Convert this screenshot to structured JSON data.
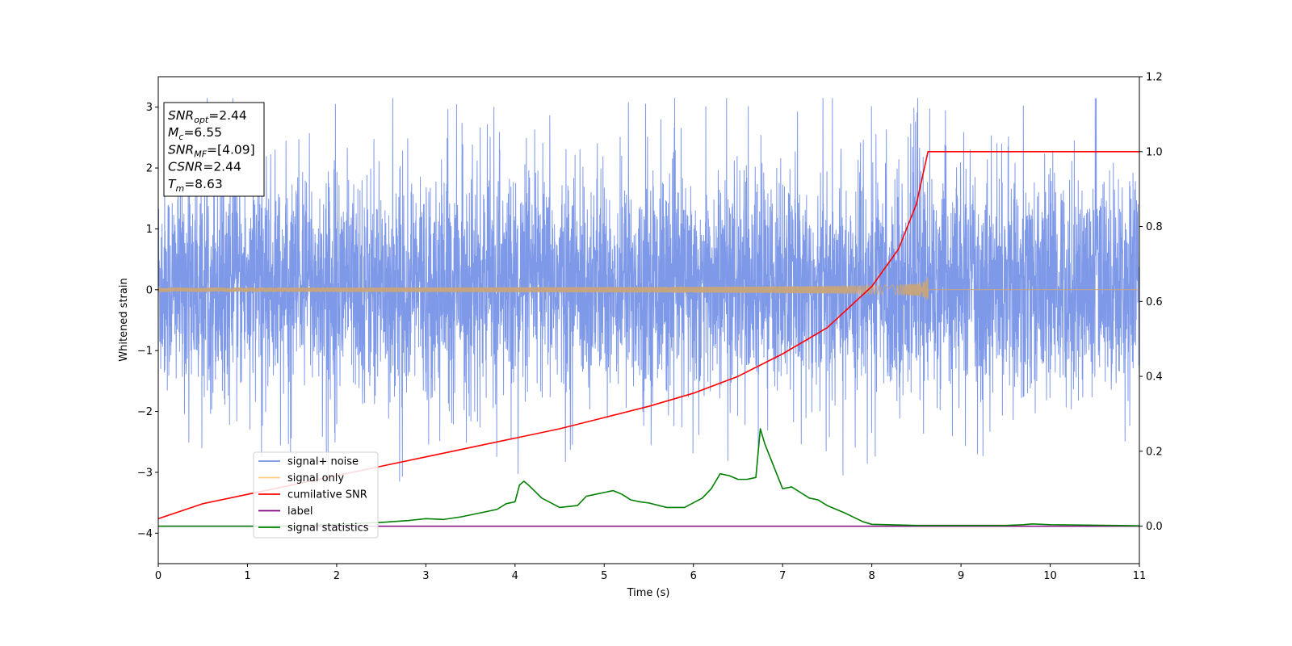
{
  "chart_data": {
    "type": "line",
    "xlabel": "Time (s)",
    "ylabel": "Whitened strain",
    "xlim": [
      0,
      11
    ],
    "ylim": [
      -4.5,
      3.5
    ],
    "ylim_right": [
      -0.1,
      1.2
    ],
    "x_ticks": [
      "0",
      "1",
      "2",
      "3",
      "4",
      "5",
      "6",
      "7",
      "8",
      "9",
      "10",
      "11"
    ],
    "y_ticks": [
      "3",
      "2",
      "1",
      "0",
      "−1",
      "−2",
      "−3",
      "−4"
    ],
    "y_right_ticks": [
      "1.2",
      "1.0",
      "0.8",
      "0.6",
      "0.4",
      "0.2",
      "0.0"
    ],
    "grid": false,
    "legend_position": "lower-left",
    "annotations": [
      {
        "base": "SNR",
        "sub": "opt",
        "value": "=2.44"
      },
      {
        "base": "M",
        "sub": "c",
        "value": "=6.55"
      },
      {
        "base": "SNR",
        "sub": "MF",
        "value": "=[4.09]"
      },
      {
        "base": "CSNR",
        "sub": "",
        "value": "=2.44"
      },
      {
        "base": "T",
        "sub": "m",
        "value": "=8.63"
      }
    ],
    "series": [
      {
        "name": "signal+ noise",
        "color": "#7893e8",
        "axis": "left",
        "kind": "noise",
        "noise_range": [
          -2.0,
          2.2
        ],
        "extreme_range": [
          -4.1,
          3.15
        ]
      },
      {
        "name": "signal only",
        "color": "#ffcc80",
        "axis": "left",
        "kind": "chirp",
        "merger_time": 8.63,
        "peak_amplitude": 0.25
      },
      {
        "name": "cumilative SNR",
        "color": "#ff0000",
        "axis": "right",
        "x": [
          0,
          0.5,
          1,
          1.5,
          2,
          2.5,
          3,
          3.5,
          4,
          4.5,
          5,
          5.5,
          6,
          6.5,
          7,
          7.5,
          8,
          8.3,
          8.5,
          8.63,
          11
        ],
        "y": [
          0.02,
          0.06,
          0.085,
          0.11,
          0.135,
          0.16,
          0.185,
          0.21,
          0.235,
          0.26,
          0.29,
          0.32,
          0.355,
          0.4,
          0.46,
          0.53,
          0.64,
          0.74,
          0.86,
          1.0,
          1.0
        ]
      },
      {
        "name": "label",
        "color": "#800080",
        "axis": "right",
        "x": [
          0,
          11
        ],
        "y": [
          0.0,
          0.0
        ]
      },
      {
        "name": "signal statistics",
        "color": "#008000",
        "axis": "right",
        "x": [
          0,
          0.5,
          1,
          1.5,
          2,
          2.5,
          2.8,
          3,
          3.2,
          3.4,
          3.6,
          3.8,
          3.9,
          4,
          4.05,
          4.1,
          4.15,
          4.3,
          4.5,
          4.7,
          4.8,
          4.9,
          5,
          5.1,
          5.2,
          5.3,
          5.4,
          5.5,
          5.7,
          5.9,
          6.1,
          6.2,
          6.3,
          6.4,
          6.5,
          6.6,
          6.7,
          6.75,
          6.8,
          6.9,
          7,
          7.1,
          7.2,
          7.3,
          7.4,
          7.5,
          7.7,
          7.9,
          8,
          8.5,
          9,
          9.5,
          9.7,
          9.8,
          10,
          11
        ],
        "y": [
          0.0,
          0.0,
          0.0,
          0.0,
          0.005,
          0.01,
          0.015,
          0.02,
          0.018,
          0.025,
          0.035,
          0.045,
          0.06,
          0.065,
          0.11,
          0.12,
          0.11,
          0.075,
          0.05,
          0.055,
          0.08,
          0.085,
          0.09,
          0.095,
          0.085,
          0.07,
          0.065,
          0.062,
          0.05,
          0.05,
          0.075,
          0.1,
          0.14,
          0.135,
          0.125,
          0.125,
          0.13,
          0.26,
          0.22,
          0.16,
          0.1,
          0.105,
          0.09,
          0.075,
          0.07,
          0.055,
          0.035,
          0.012,
          0.005,
          0.002,
          0.002,
          0.002,
          0.004,
          0.006,
          0.004,
          0.001
        ]
      }
    ]
  }
}
